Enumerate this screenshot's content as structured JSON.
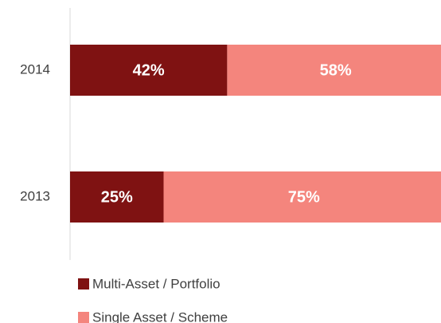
{
  "chart_data": {
    "type": "stacked-bar-horizontal",
    "categories": [
      "2014",
      "2013"
    ],
    "series": [
      {
        "name": "Multi-Asset / Portfolio",
        "color": "#7f1212",
        "values": [
          42,
          25
        ],
        "value_labels": [
          "42%",
          "25%"
        ]
      },
      {
        "name": "Single Asset / Scheme",
        "color": "#f4857d",
        "values": [
          58,
          75
        ],
        "value_labels": [
          "58%",
          "75%"
        ]
      }
    ],
    "xlim": [
      0,
      100
    ]
  }
}
